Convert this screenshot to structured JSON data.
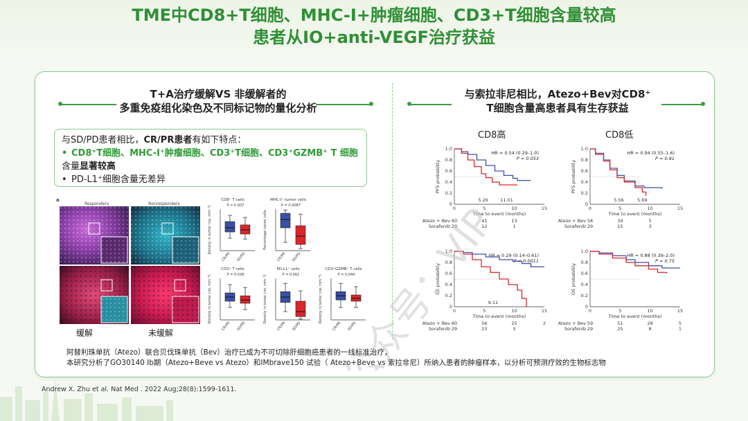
{
  "title_lines": [
    "TME中CD8+T细胞、MHC-I+肿瘤细胞、CD3+T细胞含量较高",
    "患者从IO+anti-VEGF治疗获益"
  ],
  "left_section": {
    "title_lines": [
      "T+A治疗缓解VS 非缓解者的",
      "多重免疫组化染色及不同标记物的量化分析"
    ],
    "intro_prefix": "与SD/PD患者相比，",
    "intro_bold": "CR/PR患者",
    "intro_suffix": "有如下特点：",
    "bullet1_green": "CD8⁺T细胞、MHC-I⁺肿瘤细胞、CD3⁺T细胞、CD3⁺GZMB⁺ T 细胞",
    "bullet1_tail": "含量",
    "bullet1_bold": "显著较高",
    "bullet2": "PD-L1⁺细胞含量无差异",
    "panel_label": "a",
    "col_responders": "Responders",
    "col_nonresponders": "Nonresponders",
    "caption_responders": "缓解",
    "caption_nonresponders": "未缓解",
    "boxplots": [
      {
        "title": "CD8⁺ T cells",
        "p": "P = 0.007",
        "ylabel": "Density in tumor (no. mm⁻²)"
      },
      {
        "title": "MHC-I⁺ tumor cells",
        "p": "P = 0.0087",
        "ylabel": "Percentage tumor cells"
      },
      {
        "title": "CD3⁺ T cells",
        "p": "P = 0.038",
        "ylabel": "Density in tumor (no. mm⁻²)"
      },
      {
        "title": "PD-L1⁺ cells",
        "p": "P = 0.062",
        "ylabel": "Density in tumor (no. mm⁻²)"
      },
      {
        "title": "CD3⁺GZMB⁺ T cells",
        "p": "P = 0.044",
        "ylabel": "Density in tumor (no. mm⁻²)"
      }
    ],
    "x_cats": [
      "CR/PR",
      "SD/PD"
    ]
  },
  "right_section": {
    "title_lines": [
      "与索拉非尼相比，Atezo+Bev对CD8⁺",
      "T细胞含量高患者具有生存获益"
    ],
    "label_high": "CD8高",
    "label_low": "CD8低",
    "x_axis_label": "Time to event (months)",
    "x_ticks": [
      "0",
      "5",
      "10",
      "15"
    ],
    "y_ticks": [
      "0",
      "0.2",
      "0.4",
      "0.6",
      "0.8",
      "1.0"
    ],
    "arm1": "Atezo + Bev",
    "arm2": "Sorafenib",
    "plots": [
      {
        "ylabel": "PFS probability",
        "hr": "HR = 0.54 (0.29–1.0)",
        "p": "P = 0.053",
        "med1": "5.26",
        "med2": "11.01",
        "risk1": [
          "60",
          "41",
          "13"
        ],
        "risk2": [
          "29",
          "12",
          "1"
        ]
      },
      {
        "ylabel": "PFS probability",
        "hr": "HR = 0.94 (0.55–1.6)",
        "p": "P = 0.81",
        "med1": "5.56",
        "med2": "5.69",
        "risk1": [
          "58",
          "34",
          "5"
        ],
        "risk2": [
          "29",
          "15",
          "3"
        ]
      },
      {
        "ylabel": "OS probability",
        "hr": "HR = 0.29 (0.14–0.61)",
        "p": "P = 0.0011",
        "med1": "9.11",
        "med2": "",
        "risk1": [
          "60",
          "56",
          "25",
          "2"
        ],
        "risk2": [
          "29",
          "23",
          "5",
          ""
        ]
      },
      {
        "ylabel": "OS probability",
        "hr": "HR = 0.88 (0.39–2.0)",
        "p": "P = 0.75",
        "med1": "",
        "med2": "",
        "risk1": [
          "59",
          "51",
          "28",
          "5"
        ],
        "risk2": [
          "29",
          "25",
          "8",
          "1"
        ]
      }
    ]
  },
  "bottom_note_lines": [
    "阿替利珠单抗（Atezo）联合贝伐珠单抗（Bev）治疗已成为不可切除肝细胞癌患者的一线标准治疗，",
    "本研究分析了GO30140 Ib期（Atezo+Beve vs Atezo）和IMbrave150 试验（ Atezo+Beve vs 索拉非尼）所纳入患者的肿瘤样本，以分析可预测疗效的生物标志物"
  ],
  "reference": "Andrew X. Zhu et al. Nat Med . 2022 Aug;28(8):1599-1611.",
  "watermark_text": "公众号：VIP",
  "colors": {
    "accent": "#2f8f35",
    "blue": "#3b4fa6",
    "red": "#d9262b"
  }
}
